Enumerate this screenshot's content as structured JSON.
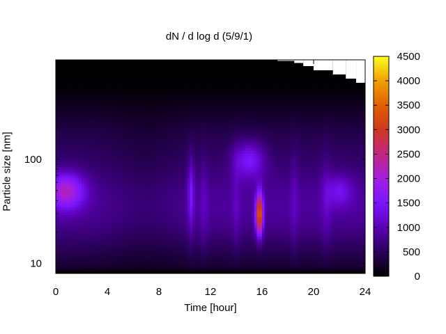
{
  "chart_data": {
    "type": "heatmap",
    "title": "dN / d log d (5/9/1)",
    "xlabel": "Time [hour]",
    "ylabel": "Particle size [nm]",
    "x_ticks": [
      0,
      4,
      8,
      12,
      16,
      20,
      24
    ],
    "xlim": [
      0,
      24
    ],
    "y_scale": "log",
    "y_ticks": [
      10,
      100
    ],
    "ylim": [
      8,
      900
    ],
    "colorbar": {
      "ticks": [
        0,
        500,
        1000,
        1500,
        2000,
        2500,
        3000,
        3500,
        4000,
        4500
      ],
      "range": [
        0,
        4500
      ],
      "colormap": [
        "#000000",
        "#2a005a",
        "#5a00b4",
        "#7a16ff",
        "#a41ee0",
        "#c02880",
        "#d03820",
        "#e06000",
        "#f0a000",
        "#ffff20"
      ]
    },
    "grid": false,
    "features": [
      {
        "time": 0.8,
        "size_nm": 50,
        "value": 2300
      },
      {
        "time": 15.8,
        "size_nm": 30,
        "value": 3600
      },
      {
        "time": 15.0,
        "size_nm": 100,
        "value": 1900
      },
      {
        "time": 10.5,
        "size_nm": 50,
        "value": 1500
      },
      {
        "time": 22.0,
        "size_nm": 50,
        "value": 1700
      }
    ]
  }
}
